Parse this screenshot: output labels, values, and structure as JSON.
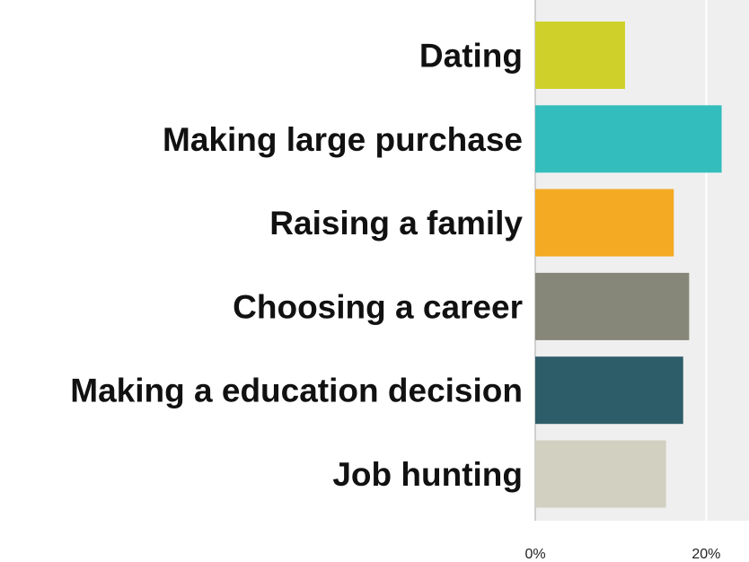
{
  "chart_data": {
    "type": "bar",
    "orientation": "horizontal",
    "categories": [
      "Dating",
      "Making large purchase",
      "Raising a family",
      "Choosing a career ",
      "Making a education decision",
      "Job hunting"
    ],
    "values": [
      10.5,
      21.8,
      16.2,
      18.0,
      17.3,
      15.3
    ],
    "colors": [
      "#cfd12a",
      "#33bdbd",
      "#f4aa22",
      "#878779",
      "#2d5d68",
      "#d1d0c1"
    ],
    "xlim": [
      0,
      25
    ],
    "xticks": [
      0,
      20
    ],
    "xtick_labels": [
      "0%",
      "20%"
    ],
    "grid": true,
    "legend": "none"
  }
}
